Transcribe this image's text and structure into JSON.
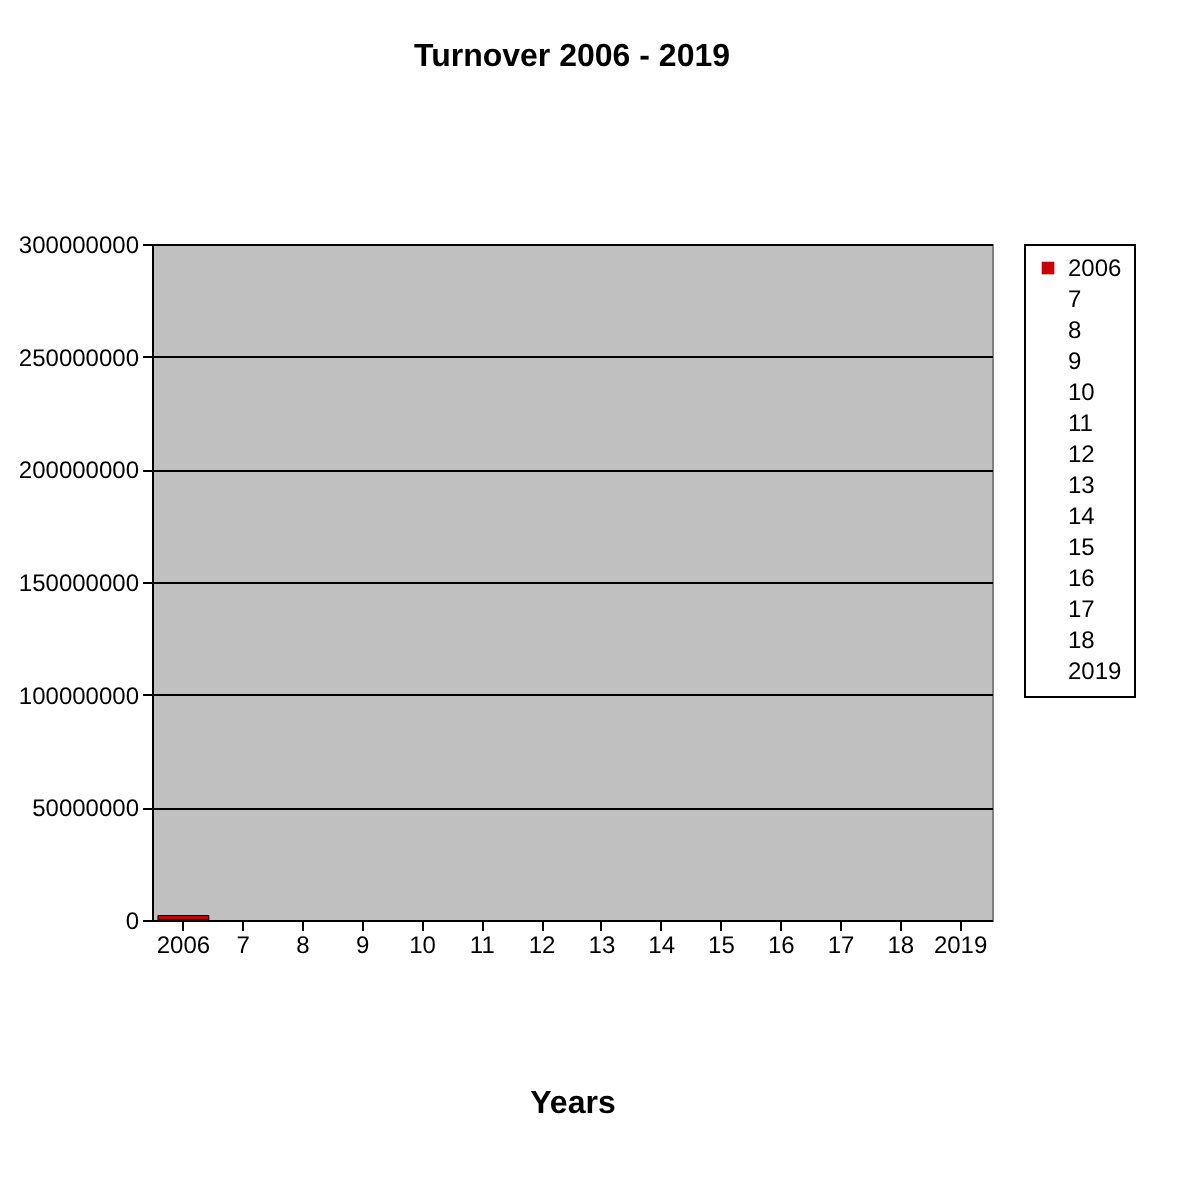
{
  "chart_data": {
    "type": "bar",
    "title": "Turnover 2006 - 2019",
    "xlabel": "Years",
    "categories": [
      "2006",
      "7",
      "8",
      "9",
      "10",
      "11",
      "12",
      "13",
      "14",
      "15",
      "16",
      "17",
      "18",
      "2019"
    ],
    "series": [
      {
        "name": "2006",
        "color": "#cc0000",
        "values": [
          2000000,
          null,
          null,
          null,
          null,
          null,
          null,
          null,
          null,
          null,
          null,
          null,
          null,
          null
        ]
      },
      {
        "name": "7",
        "values": [
          null,
          null,
          null,
          null,
          null,
          null,
          null,
          null,
          null,
          null,
          null,
          null,
          null,
          null
        ]
      },
      {
        "name": "8",
        "values": [
          null,
          null,
          null,
          null,
          null,
          null,
          null,
          null,
          null,
          null,
          null,
          null,
          null,
          null
        ]
      },
      {
        "name": "9",
        "values": [
          null,
          null,
          null,
          null,
          null,
          null,
          null,
          null,
          null,
          null,
          null,
          null,
          null,
          null
        ]
      },
      {
        "name": "10",
        "values": [
          null,
          null,
          null,
          null,
          null,
          null,
          null,
          null,
          null,
          null,
          null,
          null,
          null,
          null
        ]
      },
      {
        "name": "11",
        "values": [
          null,
          null,
          null,
          null,
          null,
          null,
          null,
          null,
          null,
          null,
          null,
          null,
          null,
          null
        ]
      },
      {
        "name": "12",
        "values": [
          null,
          null,
          null,
          null,
          null,
          null,
          null,
          null,
          null,
          null,
          null,
          null,
          null,
          null
        ]
      },
      {
        "name": "13",
        "values": [
          null,
          null,
          null,
          null,
          null,
          null,
          null,
          null,
          null,
          null,
          null,
          null,
          null,
          null
        ]
      },
      {
        "name": "14",
        "values": [
          null,
          null,
          null,
          null,
          null,
          null,
          null,
          null,
          null,
          null,
          null,
          null,
          null,
          null
        ]
      },
      {
        "name": "15",
        "values": [
          null,
          null,
          null,
          null,
          null,
          null,
          null,
          null,
          null,
          null,
          null,
          null,
          null,
          null
        ]
      },
      {
        "name": "16",
        "values": [
          null,
          null,
          null,
          null,
          null,
          null,
          null,
          null,
          null,
          null,
          null,
          null,
          null,
          null
        ]
      },
      {
        "name": "17",
        "values": [
          null,
          null,
          null,
          null,
          null,
          null,
          null,
          null,
          null,
          null,
          null,
          null,
          null,
          null
        ]
      },
      {
        "name": "18",
        "values": [
          null,
          null,
          null,
          null,
          null,
          null,
          null,
          null,
          null,
          null,
          null,
          null,
          null,
          null
        ]
      },
      {
        "name": "2019",
        "values": [
          null,
          null,
          null,
          null,
          null,
          null,
          null,
          null,
          null,
          null,
          null,
          null,
          null,
          null
        ]
      }
    ],
    "ylim": [
      0,
      300000000
    ],
    "yticks": [
      0,
      50000000,
      100000000,
      150000000,
      200000000,
      250000000,
      300000000
    ],
    "grid": "y",
    "legend": "right"
  }
}
